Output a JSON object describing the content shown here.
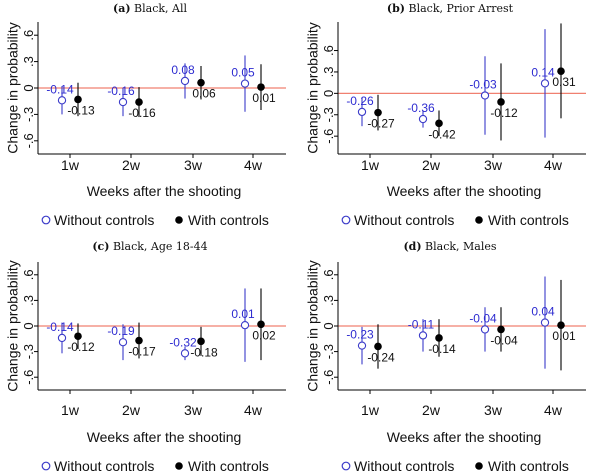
{
  "colors": {
    "without": "#3b3bc9",
    "with": "#000000",
    "zero_line": "#f08070",
    "label_without": "#2d2bd0",
    "label_with": "#111111"
  },
  "chart_data": [
    {
      "type": "scatter",
      "panel_label": "(a)",
      "title": "Black, All",
      "xlabel": "Weeks after the shooting",
      "ylabel": "Change in probability",
      "categories": [
        "1w",
        "2w",
        "3w",
        "4w"
      ],
      "yticks": [
        "-.6",
        "-.3",
        "0",
        ".3",
        ".6"
      ],
      "ylim": [
        -0.75,
        0.75
      ],
      "legend": {
        "without": "Without controls",
        "with": "With controls",
        "placement": "bottom"
      },
      "series": [
        {
          "name": "Without controls",
          "marker": "hollow-circle",
          "values": [
            -0.14,
            -0.16,
            0.08,
            0.05
          ],
          "labels": [
            "-0.14",
            "-0.16",
            "0.08",
            "0.05"
          ],
          "ci_low": [
            -0.3,
            -0.32,
            -0.12,
            -0.27
          ],
          "ci_high": [
            0.02,
            0.0,
            0.28,
            0.37
          ]
        },
        {
          "name": "With controls",
          "marker": "filled-circle",
          "values": [
            -0.13,
            -0.16,
            0.06,
            0.01
          ],
          "labels": [
            "-0.13",
            "-0.16",
            "0.06",
            "0.01"
          ],
          "ci_low": [
            -0.32,
            -0.33,
            -0.13,
            -0.25
          ],
          "ci_high": [
            0.06,
            0.01,
            0.25,
            0.27
          ]
        }
      ]
    },
    {
      "type": "scatter",
      "panel_label": "(b)",
      "title": "Black, Prior Arrest",
      "xlabel": "Weeks after the shooting",
      "ylabel": "Change in probability",
      "categories": [
        "1w",
        "2w",
        "3w",
        "4w"
      ],
      "yticks": [
        "-.6",
        "-.3",
        "0",
        ".3",
        ".6"
      ],
      "ylim": [
        -0.85,
        1.0
      ],
      "legend": {
        "without": "Without controls",
        "with": "With controls",
        "placement": "bottom"
      },
      "series": [
        {
          "name": "Without controls",
          "marker": "hollow-circle",
          "values": [
            -0.26,
            -0.36,
            -0.03,
            0.14
          ],
          "labels": [
            "-0.26",
            "-0.36",
            "-0.03",
            "0.14"
          ],
          "ci_low": [
            -0.46,
            -0.48,
            -0.58,
            -0.62
          ],
          "ci_high": [
            -0.06,
            -0.24,
            0.52,
            0.9
          ]
        },
        {
          "name": "With controls",
          "marker": "filled-circle",
          "values": [
            -0.27,
            -0.42,
            -0.12,
            0.31
          ],
          "labels": [
            "-0.27",
            "-0.42",
            "-0.12",
            "0.31"
          ],
          "ci_low": [
            -0.52,
            -0.6,
            -0.66,
            -0.35
          ],
          "ci_high": [
            -0.02,
            -0.24,
            0.42,
            0.98
          ]
        }
      ]
    },
    {
      "type": "scatter",
      "panel_label": "(c)",
      "title": "Black, Age 18-44",
      "xlabel": "Weeks after the shooting",
      "ylabel": "Change in probability",
      "categories": [
        "1w",
        "2w",
        "3w",
        "4w"
      ],
      "yticks": [
        "-.6",
        "-.3",
        "0",
        ".3",
        ".6"
      ],
      "ylim": [
        -0.75,
        0.75
      ],
      "legend": {
        "without": "Without controls",
        "with": "With controls",
        "placement": "bottom"
      },
      "series": [
        {
          "name": "Without controls",
          "marker": "hollow-circle",
          "values": [
            -0.14,
            -0.19,
            -0.32,
            0.01
          ],
          "labels": [
            "-0.14",
            "-0.19",
            "-0.32",
            "0.01"
          ],
          "ci_low": [
            -0.32,
            -0.4,
            -0.4,
            -0.42
          ],
          "ci_high": [
            0.04,
            0.02,
            -0.24,
            0.44
          ]
        },
        {
          "name": "With controls",
          "marker": "filled-circle",
          "values": [
            -0.12,
            -0.17,
            -0.18,
            0.02
          ],
          "labels": [
            "-0.12",
            "-0.17",
            "-0.18",
            "0.02"
          ],
          "ci_low": [
            -0.27,
            -0.38,
            -0.35,
            -0.4
          ],
          "ci_high": [
            0.03,
            0.04,
            -0.01,
            0.44
          ]
        }
      ]
    },
    {
      "type": "scatter",
      "panel_label": "(d)",
      "title": "Black, Males",
      "xlabel": "Weeks after the shooting",
      "ylabel": "Change in probability",
      "categories": [
        "1w",
        "2w",
        "3w",
        "4w"
      ],
      "yticks": [
        "-.6",
        "-.3",
        "0",
        ".3",
        ".6"
      ],
      "ylim": [
        -0.75,
        0.75
      ],
      "legend": {
        "without": "Without controls",
        "with": "With controls",
        "placement": "bottom"
      },
      "series": [
        {
          "name": "Without controls",
          "marker": "hollow-circle",
          "values": [
            -0.23,
            -0.11,
            -0.04,
            0.04
          ],
          "labels": [
            "-0.23",
            "-0.11",
            "-0.04",
            "0.04"
          ],
          "ci_low": [
            -0.45,
            -0.3,
            -0.3,
            -0.5
          ],
          "ci_high": [
            -0.01,
            0.08,
            0.22,
            0.58
          ]
        },
        {
          "name": "With controls",
          "marker": "filled-circle",
          "values": [
            -0.24,
            -0.14,
            -0.04,
            0.01
          ],
          "labels": [
            "-0.24",
            "-0.14",
            "-0.04",
            "0.01"
          ],
          "ci_low": [
            -0.5,
            -0.36,
            -0.3,
            -0.52
          ],
          "ci_high": [
            0.02,
            0.08,
            0.22,
            0.54
          ]
        }
      ]
    }
  ]
}
